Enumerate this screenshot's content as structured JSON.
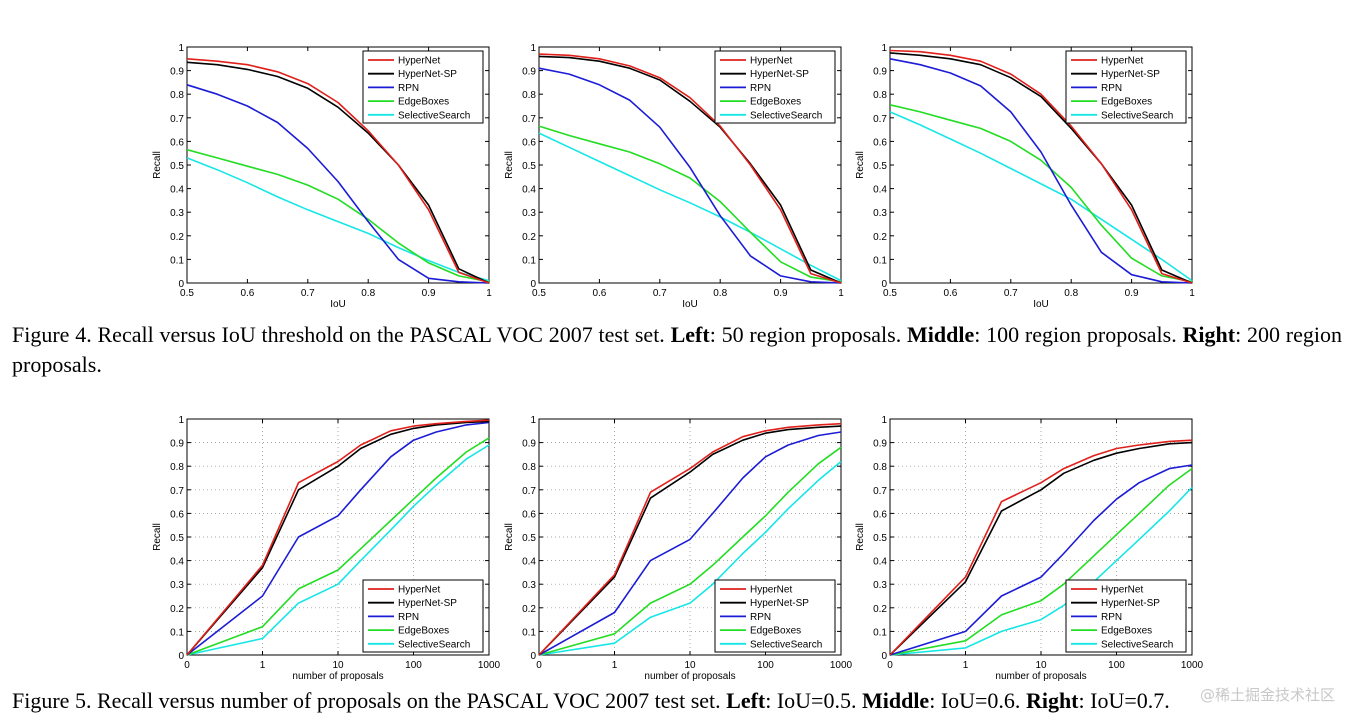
{
  "figure4": {
    "caption": {
      "prefix": "Figure 4. Recall versus IoU threshold on the PASCAL VOC 2007 test set.",
      "left_label": "Left",
      "left_text": ": 50 region proposals.",
      "middle_label": "Middle",
      "middle_text": ": 100 region proposals.",
      "right_label": "Right",
      "right_text": ": 200 region proposals."
    }
  },
  "figure5": {
    "caption": {
      "prefix": "Figure 5. Recall versus number of proposals on the PASCAL VOC 2007 test set.",
      "left_label": "Left",
      "left_text": ": IoU=0.5.",
      "middle_label": "Middle",
      "middle_text": ": IoU=0.6.",
      "right_label": "Right",
      "right_text": ": IoU=0.7."
    }
  },
  "watermark": "@稀土掘金技术社区",
  "colors": {
    "HyperNet": "#e0201b",
    "HyperNet-SP": "#000000",
    "RPN": "#1c1cd6",
    "EdgeBoxes": "#22dd22",
    "SelectiveSearch": "#17e6e6"
  },
  "chart_data": [
    {
      "id": "fig4-left",
      "type": "line",
      "title": "",
      "xlabel": "IoU",
      "ylabel": "Recall",
      "xlim": [
        0.5,
        1
      ],
      "ylim": [
        0,
        1
      ],
      "xticks": [
        "0.5",
        "0.6",
        "0.7",
        "0.8",
        "0.9",
        "1"
      ],
      "yticks": [
        "0",
        "0.1",
        "0.2",
        "0.3",
        "0.4",
        "0.5",
        "0.6",
        "0.7",
        "0.8",
        "0.9",
        "1"
      ],
      "grid": false,
      "legend": "top-right",
      "x": [
        0.5,
        0.55,
        0.6,
        0.65,
        0.7,
        0.75,
        0.8,
        0.85,
        0.9,
        0.95,
        1.0
      ],
      "series": [
        {
          "name": "HyperNet",
          "values": [
            0.95,
            0.94,
            0.925,
            0.895,
            0.845,
            0.765,
            0.645,
            0.5,
            0.31,
            0.045,
            0.0
          ]
        },
        {
          "name": "HyperNet-SP",
          "values": [
            0.935,
            0.925,
            0.905,
            0.875,
            0.825,
            0.745,
            0.635,
            0.5,
            0.33,
            0.06,
            0.0
          ]
        },
        {
          "name": "RPN",
          "values": [
            0.84,
            0.8,
            0.75,
            0.68,
            0.57,
            0.43,
            0.26,
            0.1,
            0.02,
            0.005,
            0.0
          ]
        },
        {
          "name": "EdgeBoxes",
          "values": [
            0.565,
            0.53,
            0.495,
            0.46,
            0.415,
            0.355,
            0.27,
            0.17,
            0.085,
            0.03,
            0.005
          ]
        },
        {
          "name": "SelectiveSearch",
          "values": [
            0.53,
            0.48,
            0.425,
            0.365,
            0.31,
            0.26,
            0.21,
            0.15,
            0.095,
            0.045,
            0.01
          ]
        }
      ]
    },
    {
      "id": "fig4-middle",
      "type": "line",
      "title": "",
      "xlabel": "IoU",
      "ylabel": "Recall",
      "xlim": [
        0.5,
        1
      ],
      "ylim": [
        0,
        1
      ],
      "xticks": [
        "0.5",
        "0.6",
        "0.7",
        "0.8",
        "0.9",
        "1"
      ],
      "yticks": [
        "0",
        "0.1",
        "0.2",
        "0.3",
        "0.4",
        "0.5",
        "0.6",
        "0.7",
        "0.8",
        "0.9",
        "1"
      ],
      "grid": false,
      "legend": "top-right",
      "x": [
        0.5,
        0.55,
        0.6,
        0.65,
        0.7,
        0.75,
        0.8,
        0.85,
        0.9,
        0.95,
        1.0
      ],
      "series": [
        {
          "name": "HyperNet",
          "values": [
            0.97,
            0.965,
            0.95,
            0.92,
            0.87,
            0.785,
            0.665,
            0.5,
            0.31,
            0.04,
            0.0
          ]
        },
        {
          "name": "HyperNet-SP",
          "values": [
            0.96,
            0.955,
            0.94,
            0.91,
            0.86,
            0.77,
            0.66,
            0.505,
            0.33,
            0.055,
            0.0
          ]
        },
        {
          "name": "RPN",
          "values": [
            0.91,
            0.885,
            0.84,
            0.775,
            0.66,
            0.49,
            0.285,
            0.115,
            0.03,
            0.005,
            0.0
          ]
        },
        {
          "name": "EdgeBoxes",
          "values": [
            0.665,
            0.625,
            0.59,
            0.555,
            0.505,
            0.445,
            0.345,
            0.215,
            0.09,
            0.025,
            0.005
          ]
        },
        {
          "name": "SelectiveSearch",
          "values": [
            0.635,
            0.575,
            0.515,
            0.455,
            0.395,
            0.34,
            0.28,
            0.215,
            0.145,
            0.075,
            0.01
          ]
        }
      ]
    },
    {
      "id": "fig4-right",
      "type": "line",
      "title": "",
      "xlabel": "IoU",
      "ylabel": "Recall",
      "xlim": [
        0.5,
        1
      ],
      "ylim": [
        0,
        1
      ],
      "xticks": [
        "0.5",
        "0.6",
        "0.7",
        "0.8",
        "0.9",
        "1"
      ],
      "yticks": [
        "0",
        "0.1",
        "0.2",
        "0.3",
        "0.4",
        "0.5",
        "0.6",
        "0.7",
        "0.8",
        "0.9",
        "1"
      ],
      "grid": false,
      "legend": "top-right",
      "x": [
        0.5,
        0.55,
        0.6,
        0.65,
        0.7,
        0.75,
        0.8,
        0.85,
        0.9,
        0.95,
        1.0
      ],
      "series": [
        {
          "name": "HyperNet",
          "values": [
            0.985,
            0.98,
            0.965,
            0.94,
            0.885,
            0.8,
            0.665,
            0.505,
            0.31,
            0.04,
            0.0
          ]
        },
        {
          "name": "HyperNet-SP",
          "values": [
            0.975,
            0.965,
            0.95,
            0.925,
            0.87,
            0.79,
            0.655,
            0.505,
            0.33,
            0.055,
            0.0
          ]
        },
        {
          "name": "RPN",
          "values": [
            0.95,
            0.925,
            0.89,
            0.835,
            0.725,
            0.555,
            0.33,
            0.13,
            0.035,
            0.005,
            0.0
          ]
        },
        {
          "name": "EdgeBoxes",
          "values": [
            0.755,
            0.725,
            0.69,
            0.655,
            0.6,
            0.52,
            0.405,
            0.245,
            0.105,
            0.03,
            0.005
          ]
        },
        {
          "name": "SelectiveSearch",
          "values": [
            0.725,
            0.67,
            0.61,
            0.55,
            0.485,
            0.42,
            0.355,
            0.27,
            0.185,
            0.1,
            0.01
          ]
        }
      ]
    },
    {
      "id": "fig5-left",
      "type": "line",
      "title": "",
      "xlabel": "number of proposals",
      "ylabel": "Recall",
      "xscale": "symlog",
      "xlim": [
        0,
        1000
      ],
      "ylim": [
        0,
        1
      ],
      "xticks": [
        "0",
        "1",
        "10",
        "100",
        "1000"
      ],
      "yticks": [
        "0",
        "0.1",
        "0.2",
        "0.3",
        "0.4",
        "0.5",
        "0.6",
        "0.7",
        "0.8",
        "0.9",
        "1"
      ],
      "grid": true,
      "legend": "bottom-right",
      "x": [
        0,
        1,
        3,
        10,
        20,
        50,
        100,
        200,
        500,
        1000
      ],
      "series": [
        {
          "name": "HyperNet",
          "values": [
            0,
            0.38,
            0.73,
            0.82,
            0.89,
            0.95,
            0.97,
            0.98,
            0.99,
            0.995
          ]
        },
        {
          "name": "HyperNet-SP",
          "values": [
            0,
            0.37,
            0.7,
            0.8,
            0.875,
            0.935,
            0.96,
            0.975,
            0.985,
            0.99
          ]
        },
        {
          "name": "RPN",
          "values": [
            0,
            0.25,
            0.5,
            0.59,
            0.7,
            0.84,
            0.91,
            0.945,
            0.975,
            0.985
          ]
        },
        {
          "name": "EdgeBoxes",
          "values": [
            0,
            0.12,
            0.28,
            0.36,
            0.45,
            0.57,
            0.66,
            0.75,
            0.86,
            0.92
          ]
        },
        {
          "name": "SelectiveSearch",
          "values": [
            0,
            0.07,
            0.22,
            0.3,
            0.4,
            0.53,
            0.63,
            0.72,
            0.83,
            0.89
          ]
        }
      ]
    },
    {
      "id": "fig5-middle",
      "type": "line",
      "title": "",
      "xlabel": "number of proposals",
      "ylabel": "Recall",
      "xscale": "symlog",
      "xlim": [
        0,
        1000
      ],
      "ylim": [
        0,
        1
      ],
      "xticks": [
        "0",
        "1",
        "10",
        "100",
        "1000"
      ],
      "yticks": [
        "0",
        "0.1",
        "0.2",
        "0.3",
        "0.4",
        "0.5",
        "0.6",
        "0.7",
        "0.8",
        "0.9",
        "1"
      ],
      "grid": true,
      "legend": "bottom-right",
      "x": [
        0,
        1,
        3,
        10,
        20,
        50,
        100,
        200,
        500,
        1000
      ],
      "series": [
        {
          "name": "HyperNet",
          "values": [
            0,
            0.34,
            0.69,
            0.79,
            0.86,
            0.925,
            0.95,
            0.965,
            0.975,
            0.98
          ]
        },
        {
          "name": "HyperNet-SP",
          "values": [
            0,
            0.33,
            0.665,
            0.775,
            0.85,
            0.91,
            0.94,
            0.955,
            0.965,
            0.97
          ]
        },
        {
          "name": "RPN",
          "values": [
            0,
            0.18,
            0.4,
            0.49,
            0.6,
            0.75,
            0.84,
            0.89,
            0.93,
            0.945
          ]
        },
        {
          "name": "EdgeBoxes",
          "values": [
            0,
            0.09,
            0.22,
            0.3,
            0.38,
            0.5,
            0.59,
            0.69,
            0.81,
            0.88
          ]
        },
        {
          "name": "SelectiveSearch",
          "values": [
            0,
            0.05,
            0.16,
            0.22,
            0.3,
            0.43,
            0.52,
            0.62,
            0.74,
            0.82
          ]
        }
      ]
    },
    {
      "id": "fig5-right",
      "type": "line",
      "title": "",
      "xlabel": "number of proposals",
      "ylabel": "Recall",
      "xscale": "symlog",
      "xlim": [
        0,
        1000
      ],
      "ylim": [
        0,
        1
      ],
      "xticks": [
        "0",
        "1",
        "10",
        "100",
        "1000"
      ],
      "yticks": [
        "0",
        "0.1",
        "0.2",
        "0.3",
        "0.4",
        "0.5",
        "0.6",
        "0.7",
        "0.8",
        "0.9",
        "1"
      ],
      "grid": true,
      "legend": "bottom-right",
      "x": [
        0,
        1,
        3,
        10,
        20,
        50,
        100,
        200,
        500,
        1000
      ],
      "series": [
        {
          "name": "HyperNet",
          "values": [
            0,
            0.33,
            0.65,
            0.73,
            0.79,
            0.845,
            0.875,
            0.89,
            0.905,
            0.91
          ]
        },
        {
          "name": "HyperNet-SP",
          "values": [
            0,
            0.31,
            0.61,
            0.7,
            0.77,
            0.825,
            0.855,
            0.875,
            0.895,
            0.9
          ]
        },
        {
          "name": "RPN",
          "values": [
            0,
            0.1,
            0.25,
            0.33,
            0.43,
            0.57,
            0.66,
            0.73,
            0.79,
            0.805
          ]
        },
        {
          "name": "EdgeBoxes",
          "values": [
            0,
            0.06,
            0.17,
            0.23,
            0.3,
            0.42,
            0.51,
            0.6,
            0.72,
            0.79
          ]
        },
        {
          "name": "SelectiveSearch",
          "values": [
            0,
            0.03,
            0.1,
            0.15,
            0.21,
            0.31,
            0.4,
            0.49,
            0.61,
            0.71
          ]
        }
      ]
    }
  ]
}
